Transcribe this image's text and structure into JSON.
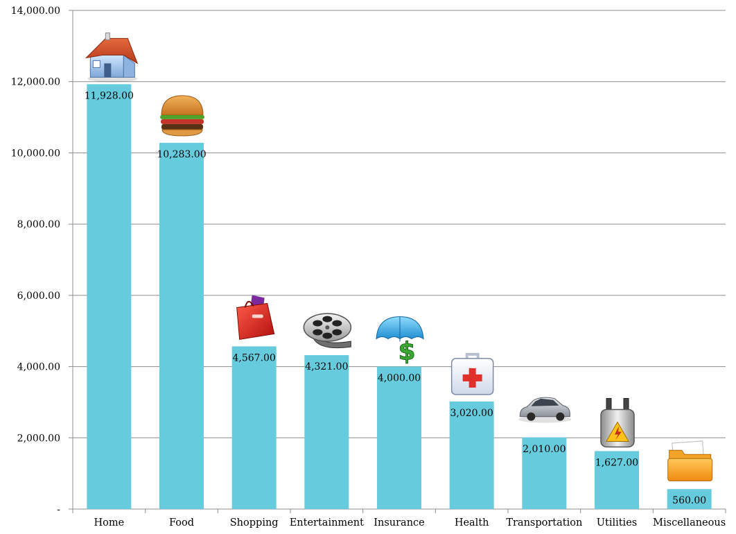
{
  "chart_data": {
    "type": "bar",
    "title": "",
    "xlabel": "",
    "ylabel": "",
    "ylim": [
      0,
      14000
    ],
    "yticks": [
      0,
      2000,
      4000,
      6000,
      8000,
      10000,
      12000,
      14000
    ],
    "ytick_labels": [
      "-",
      "2,000.00",
      "4,000.00",
      "6,000.00",
      "8,000.00",
      "10,000.00",
      "12,000.00",
      "14,000.00"
    ],
    "grid": true,
    "legend": "none",
    "bar_color": "#66CCDD",
    "categories": [
      "Home",
      "Food",
      "Shopping",
      "Entertainment",
      "Insurance",
      "Health",
      "Transportation",
      "Utilities",
      "Miscellaneous"
    ],
    "values": [
      11928,
      10283,
      4567,
      4321,
      4000,
      3020,
      2010,
      1627,
      560
    ],
    "value_labels": [
      "11,928.00",
      "10,283.00",
      "4,567.00",
      "4,321.00",
      "4,000.00",
      "3,020.00",
      "2,010.00",
      "1,627.00",
      "560.00"
    ],
    "icons": [
      "house-icon",
      "burger-icon",
      "shopping-bag-icon",
      "film-reel-icon",
      "umbrella-dollar-icon",
      "first-aid-kit-icon",
      "car-icon",
      "power-transformer-icon",
      "folder-icon"
    ]
  }
}
